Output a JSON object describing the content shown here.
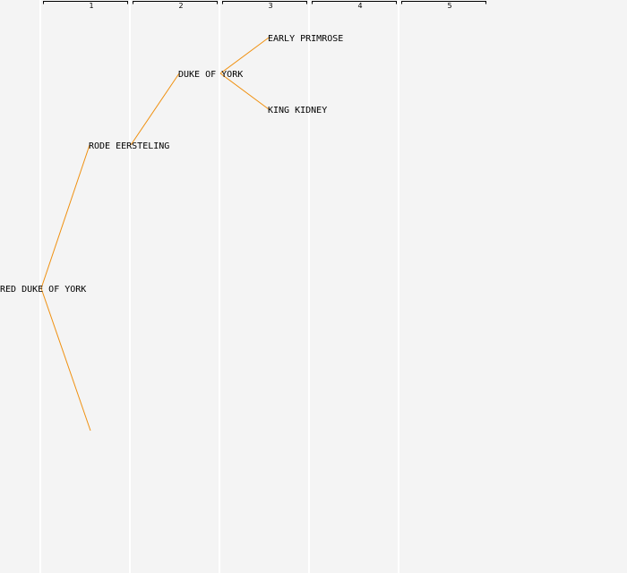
{
  "generations": [
    "1",
    "2",
    "3",
    "4",
    "5"
  ],
  "colors": {
    "background": "#f4f4f4",
    "separator": "#ffffff",
    "edge": "#f0900f",
    "text": "#000000"
  },
  "tree": {
    "root": "RED DUKE OF YORK",
    "nodes": [
      {
        "id": "n0",
        "label": "RED DUKE OF YORK",
        "generation": 0
      },
      {
        "id": "n1",
        "label": "RODE EERSTELING",
        "generation": 1,
        "parent": "n0"
      },
      {
        "id": "n1b",
        "label": "",
        "generation": 1,
        "parent": "n0"
      },
      {
        "id": "n2",
        "label": "DUKE OF YORK",
        "generation": 2,
        "parent": "n1"
      },
      {
        "id": "n3a",
        "label": "EARLY PRIMROSE",
        "generation": 3,
        "parent": "n2"
      },
      {
        "id": "n3b",
        "label": "KING KIDNEY",
        "generation": 3,
        "parent": "n2"
      }
    ]
  }
}
